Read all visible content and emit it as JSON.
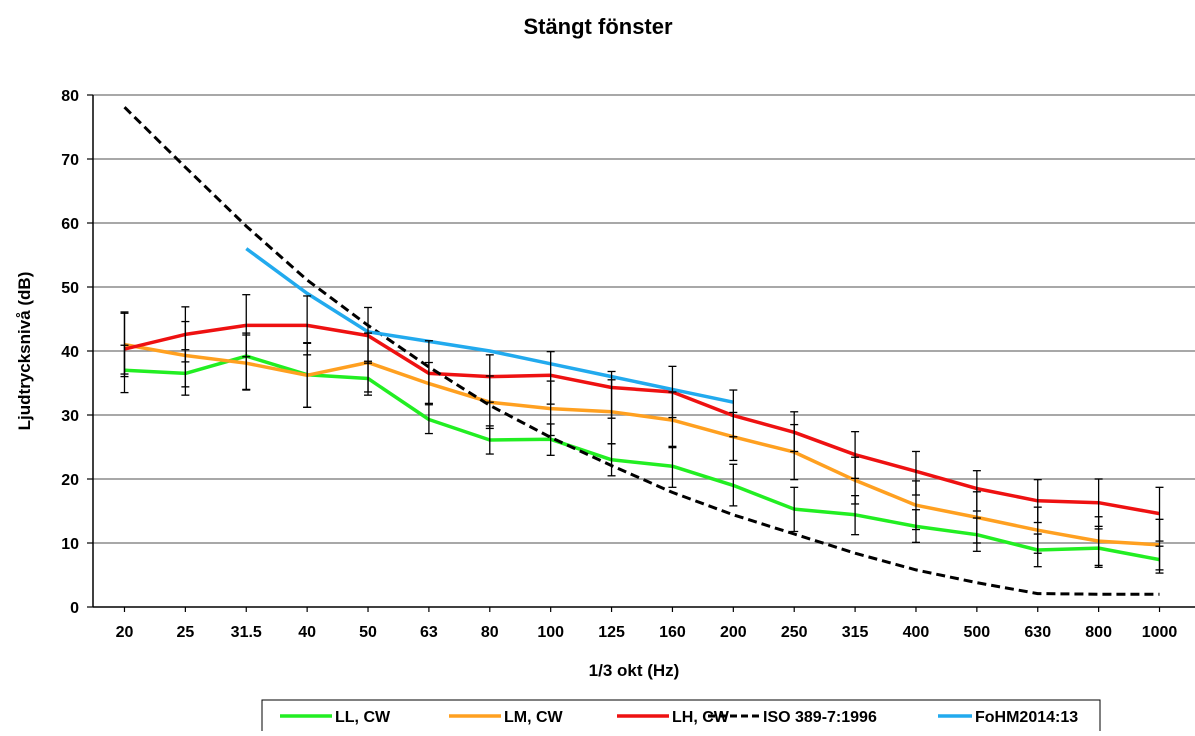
{
  "chart_data": {
    "type": "line",
    "title": "Stängt fönster",
    "xlabel": "1/3 okt (Hz)",
    "ylabel": "Ljudtrycksnivå (dB)",
    "categories": [
      "20",
      "25",
      "31.5",
      "40",
      "50",
      "63",
      "80",
      "100",
      "125",
      "160",
      "200",
      "250",
      "315",
      "400",
      "500",
      "630",
      "800",
      "1000"
    ],
    "ylim": [
      0,
      80
    ],
    "yticks": [
      "0",
      "10",
      "20",
      "30",
      "40",
      "50",
      "60",
      "70",
      "80"
    ],
    "grid": "horizontal",
    "legend_position": "bottom",
    "series": [
      {
        "name": "LL, CW",
        "color": "#22ee22",
        "style": "solid",
        "values": [
          37,
          36.5,
          39.2,
          36.3,
          35.7,
          29.3,
          26.1,
          26.2,
          23,
          22,
          19,
          15.3,
          14.4,
          12.6,
          11.3,
          8.9,
          9.2,
          7.4
        ],
        "err_low": [
          33.5,
          33.1,
          33.9,
          31.2,
          33.1,
          27.1,
          23.9,
          23.7,
          20.5,
          18.7,
          15.8,
          11.8,
          11.3,
          10.1,
          8.7,
          6.3,
          6.2,
          5.3
        ],
        "err_high": [
          40.9,
          40.2,
          42.8,
          41.2,
          38.4,
          31.8,
          28.3,
          28.6,
          25.5,
          25.1,
          22.3,
          18.7,
          17.4,
          15.2,
          13.9,
          11.4,
          12.2,
          9.5
        ]
      },
      {
        "name": "LM, CW",
        "color": "#ffa020",
        "style": "solid",
        "values": [
          41,
          39.3,
          38.1,
          36.2,
          38.2,
          34.9,
          32,
          31,
          30.5,
          29.2,
          26.6,
          24.2,
          19.8,
          15.9,
          14,
          12,
          10.3,
          9.7
        ],
        "err_low": [
          36,
          34.4,
          34,
          31.2,
          33.6,
          31.6,
          27.9,
          26.8,
          25.5,
          24.9,
          22.9,
          19.9,
          16.1,
          12.1,
          10,
          8.4,
          6.5,
          5.8
        ],
        "err_high": [
          45.9,
          44.6,
          42.5,
          41.3,
          42.8,
          38.2,
          36.1,
          35.3,
          35.5,
          33.6,
          30.4,
          28.5,
          23.4,
          19.7,
          18,
          15.6,
          14.1,
          13.7
        ]
      },
      {
        "name": "LH, CW",
        "color": "#ee1111",
        "style": "solid",
        "values": [
          40.3,
          42.6,
          44,
          44,
          42.4,
          36.5,
          36,
          36.2,
          34.3,
          33.6,
          29.9,
          27.3,
          23.8,
          21.2,
          18.5,
          16.6,
          16.3,
          14.6
        ],
        "err_low": [
          36.4,
          38.3,
          39.1,
          39.4,
          38.1,
          31.8,
          32,
          31.7,
          29.5,
          29.6,
          26.6,
          24.3,
          20.1,
          17.5,
          15,
          13.2,
          12.6,
          10.3
        ],
        "err_high": [
          46.1,
          46.9,
          48.8,
          48.6,
          46.8,
          41.6,
          39.4,
          39.9,
          36.8,
          37.6,
          33.9,
          30.5,
          27.4,
          24.3,
          21.3,
          19.9,
          20,
          18.7
        ]
      },
      {
        "name": "ISO 389-7:1996",
        "color": "#000000",
        "style": "dashed",
        "values": [
          78.1,
          68.7,
          59.5,
          51.1,
          44,
          37.5,
          31.5,
          26.5,
          22.1,
          17.9,
          14.4,
          11.4,
          8.4,
          5.8,
          3.8,
          2.1,
          2,
          2
        ]
      },
      {
        "name": "FoHM2014:13",
        "color": "#22aaee",
        "style": "solid",
        "values": [
          null,
          null,
          56,
          49,
          43,
          41.5,
          40,
          38,
          36,
          34,
          32,
          null,
          null,
          null,
          null,
          null,
          null,
          null
        ]
      }
    ]
  }
}
